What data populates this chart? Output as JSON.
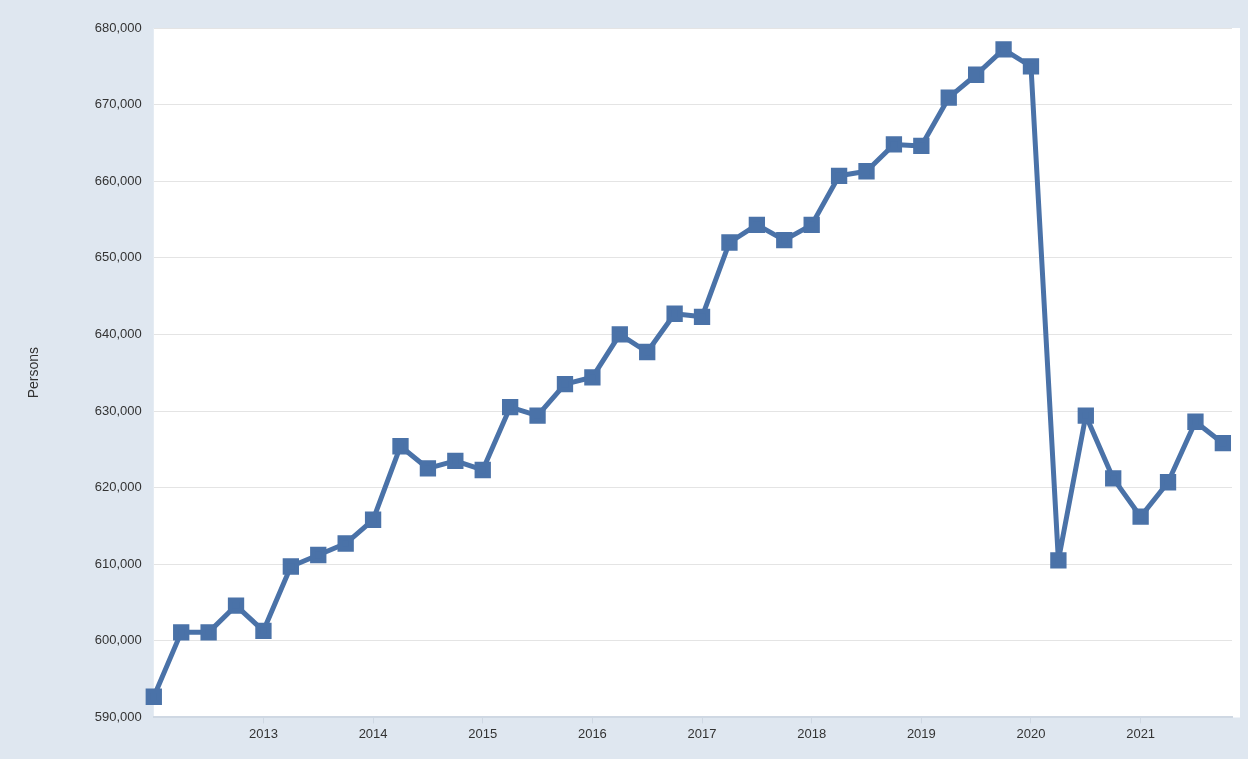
{
  "chart_data": {
    "type": "line",
    "ylabel": "Persons",
    "x": [
      "2012-01",
      "2012-04",
      "2012-07",
      "2012-10",
      "2013-01",
      "2013-04",
      "2013-07",
      "2013-10",
      "2014-01",
      "2014-04",
      "2014-07",
      "2014-10",
      "2015-01",
      "2015-04",
      "2015-07",
      "2015-10",
      "2016-01",
      "2016-04",
      "2016-07",
      "2016-10",
      "2017-01",
      "2017-04",
      "2017-07",
      "2017-10",
      "2018-01",
      "2018-04",
      "2018-07",
      "2018-10",
      "2019-01",
      "2019-04",
      "2019-07",
      "2019-10",
      "2020-01",
      "2020-04",
      "2020-07",
      "2020-10",
      "2021-01",
      "2021-04",
      "2021-07",
      "2021-10"
    ],
    "series": [
      {
        "color": "#4a72a8",
        "values": [
          592700,
          601100,
          601100,
          604600,
          601300,
          609700,
          611200,
          612700,
          615800,
          625400,
          622500,
          623500,
          622300,
          630500,
          629400,
          633500,
          634400,
          640000,
          637700,
          642700,
          642300,
          652000,
          654300,
          652300,
          654300,
          660700,
          661300,
          664800,
          664600,
          670900,
          673900,
          677200,
          675000,
          610500,
          629400,
          621200,
          616200,
          620700,
          628600,
          625800
        ]
      }
    ],
    "xlim": [
      "2012-01",
      "2021-11"
    ],
    "xticks": [
      "2013",
      "2014",
      "2015",
      "2016",
      "2017",
      "2018",
      "2019",
      "2020",
      "2021"
    ],
    "ylim": [
      590000,
      680000
    ],
    "yticks": [
      {
        "value": 590000,
        "label": "590,000"
      },
      {
        "value": 600000,
        "label": "600,000"
      },
      {
        "value": 610000,
        "label": "610,000"
      },
      {
        "value": 620000,
        "label": "620,000"
      },
      {
        "value": 630000,
        "label": "630,000"
      },
      {
        "value": 640000,
        "label": "640,000"
      },
      {
        "value": 650000,
        "label": "650,000"
      },
      {
        "value": 660000,
        "label": "660,000"
      },
      {
        "value": 670000,
        "label": "670,000"
      },
      {
        "value": 680000,
        "label": "680,000"
      }
    ],
    "grid": "y",
    "marker": "square",
    "line_style": "solid",
    "legend": false
  }
}
